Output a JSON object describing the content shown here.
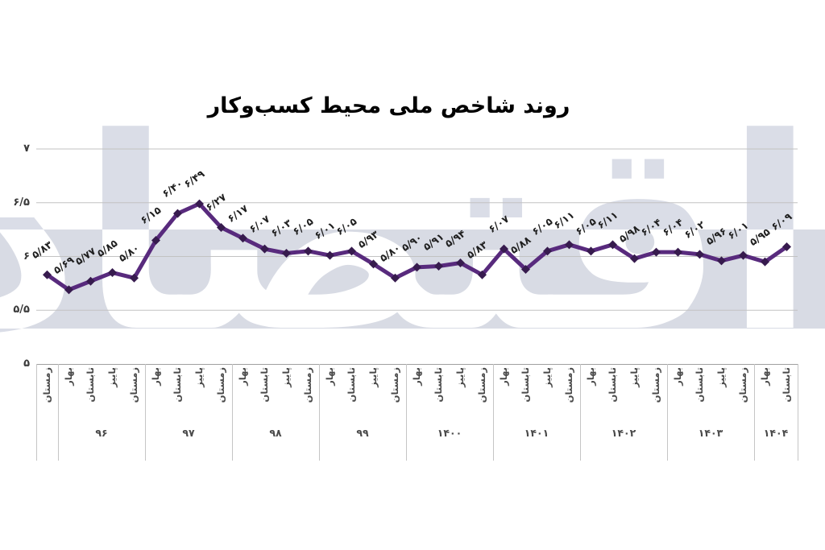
{
  "title": "روند شاخص ملی محیط کسب‌وکار",
  "watermark": {
    "text": "دنیای اقتصاد"
  },
  "colors": {
    "line": "#582a7d",
    "marker": "#371b4e",
    "band": "#d8dbe4",
    "grid": "#c2c2c2",
    "axis_line": "#a0a0a0",
    "label_text": "#1f1f1f"
  },
  "chart_data": {
    "type": "line",
    "title": "روند شاخص ملی محیط کسب‌وکار",
    "ylim": [
      5,
      7
    ],
    "grid": true,
    "legend": "none",
    "y_ticks": [
      {
        "value": 7,
        "label": "۷"
      },
      {
        "value": 6.5,
        "label": "۶/۵"
      },
      {
        "value": 6,
        "label": "۶"
      },
      {
        "value": 5.5,
        "label": "۵/۵"
      },
      {
        "value": 5,
        "label": "۵"
      }
    ],
    "x_groups": [
      {
        "year": "",
        "seasons": [
          "زمستان"
        ]
      },
      {
        "year": "۹۶",
        "seasons": [
          "بهار",
          "تابستان",
          "پاییز",
          "زمستان"
        ]
      },
      {
        "year": "۹۷",
        "seasons": [
          "بهار",
          "تابستان",
          "پاییز",
          "زمستان"
        ]
      },
      {
        "year": "۹۸",
        "seasons": [
          "بهار",
          "تابستان",
          "پاییز",
          "زمستان"
        ]
      },
      {
        "year": "۹۹",
        "seasons": [
          "بهار",
          "تابستان",
          "پاییز",
          "زمستان"
        ]
      },
      {
        "year": "۱۴۰۰",
        "seasons": [
          "بهار",
          "تابستان",
          "پاییز",
          "زمستان"
        ]
      },
      {
        "year": "۱۴۰۱",
        "seasons": [
          "بهار",
          "تابستان",
          "پاییز",
          "زمستان"
        ]
      },
      {
        "year": "۱۴۰۲",
        "seasons": [
          "بهار",
          "تابستان",
          "پاییز",
          "زمستان"
        ]
      },
      {
        "year": "۱۴۰۳",
        "seasons": [
          "بهار",
          "تابستان",
          "پاییز",
          "زمستان"
        ]
      },
      {
        "year": "۱۴۰۴",
        "seasons": [
          "بهار",
          "تابستان"
        ]
      }
    ],
    "series": [
      {
        "name": "شاخص ملی محیط کسب‌وکار",
        "values": [
          5.83,
          5.69,
          5.77,
          5.85,
          5.8,
          6.15,
          6.4,
          6.49,
          6.27,
          6.17,
          6.07,
          6.03,
          6.05,
          6.01,
          6.05,
          5.93,
          5.8,
          5.9,
          5.91,
          5.94,
          5.83,
          6.07,
          5.88,
          6.05,
          6.11,
          6.05,
          6.11,
          5.98,
          6.04,
          6.04,
          6.02,
          5.96,
          6.01,
          5.95,
          6.09
        ],
        "point_labels": [
          "۵/۸۳",
          "۵/۶۹",
          "۵/۷۷",
          "۵/۸۵",
          "۵/۸۰",
          "۶/۱۵",
          "۶/۴۰",
          "۶/۴۹",
          "۶/۲۷",
          "۶/۱۷",
          "۶/۰۷",
          "۶/۰۳",
          "۶/۰۵",
          "۶/۰۱",
          "۶/۰۵",
          "۵/۹۳",
          "۵/۸۰",
          "۵/۹۰",
          "۵/۹۱",
          "۵/۹۴",
          "۵/۸۳",
          "۶/۰۷",
          "۵/۸۸",
          "۶/۰۵",
          "۶/۱۱",
          "۶/۰۵",
          "۶/۱۱",
          "۵/۹۸",
          "۶/۰۴",
          "۶/۰۴",
          "۶/۰۲",
          "۵/۹۶",
          "۶/۰۱",
          "۵/۹۵",
          "۶/۰۹"
        ]
      }
    ]
  }
}
